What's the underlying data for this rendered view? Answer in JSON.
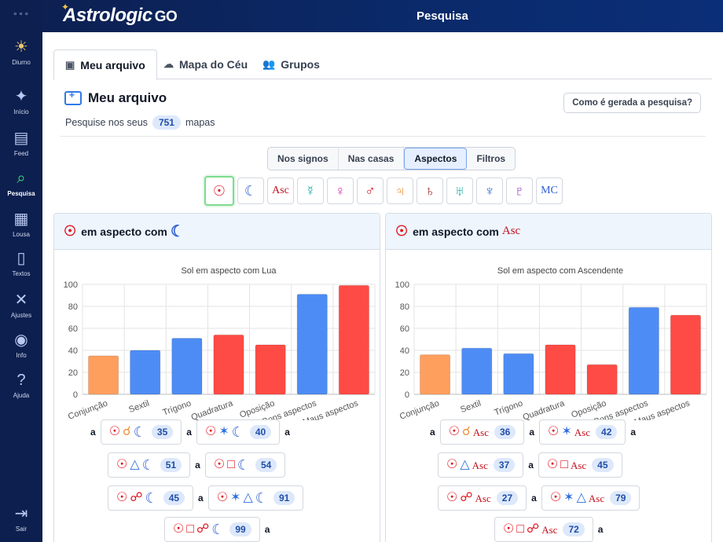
{
  "app": {
    "logo": "Astrologic",
    "logo_suffix": "GO",
    "page_title": "Pesquisa"
  },
  "sidebar": {
    "menu_dots": "∘∘∘",
    "items": [
      {
        "label": "Diurno",
        "icon": "sun-icon",
        "glyph": "☀"
      },
      {
        "label": "Início",
        "icon": "sparkle-icon",
        "glyph": "✦"
      },
      {
        "label": "Feed",
        "icon": "feed-icon",
        "glyph": "▤"
      },
      {
        "label": "Pesquisa",
        "icon": "search-icon",
        "glyph": "⌕",
        "active": true
      },
      {
        "label": "Lousa",
        "icon": "board-icon",
        "glyph": "▦"
      },
      {
        "label": "Textos",
        "icon": "document-icon",
        "glyph": "▯"
      },
      {
        "label": "Ajustes",
        "icon": "tools-icon",
        "glyph": "✕"
      },
      {
        "label": "Info",
        "icon": "info-icon",
        "glyph": "◉"
      },
      {
        "label": "Ajuda",
        "icon": "help-icon",
        "glyph": "?"
      },
      {
        "label": "Sair",
        "icon": "logout-icon",
        "glyph": "⇥"
      }
    ]
  },
  "tabs": [
    {
      "label": "Meu arquivo",
      "icon": "folder-icon",
      "glyph": "▣",
      "active": true
    },
    {
      "label": "Mapa do Céu",
      "icon": "cloud-icon",
      "glyph": "☁"
    },
    {
      "label": "Grupos",
      "icon": "group-icon",
      "glyph": "👥"
    }
  ],
  "section": {
    "title": "Meu arquivo",
    "how_button": "Como é gerada a pesquisa?",
    "search_prefix": "Pesquise nos seus",
    "map_count": "751",
    "search_suffix": "mapas"
  },
  "segments": [
    {
      "label": "Nos signos"
    },
    {
      "label": "Nas casas"
    },
    {
      "label": "Aspectos",
      "active": true
    },
    {
      "label": "Filtros"
    }
  ],
  "planets": [
    {
      "glyph": "☉",
      "icon": "sun-icon",
      "color": "#e0121f",
      "active": true
    },
    {
      "glyph": "☾",
      "icon": "moon-icon",
      "color": "#2f5fd6"
    },
    {
      "glyph": "Asc",
      "icon": "ascendant-icon",
      "color": "#c1121f",
      "kind": "asc"
    },
    {
      "glyph": "☿",
      "icon": "mercury-icon",
      "color": "#1aa6a6"
    },
    {
      "glyph": "♀",
      "icon": "venus-icon",
      "color": "#d630b0"
    },
    {
      "glyph": "♂",
      "icon": "mars-icon",
      "color": "#d0141f"
    },
    {
      "glyph": "♃",
      "icon": "jupiter-icon",
      "color": "#f0933c"
    },
    {
      "glyph": "♄",
      "icon": "saturn-icon",
      "color": "#9b1b1b"
    },
    {
      "glyph": "♅",
      "icon": "uranus-icon",
      "color": "#1aa6a6"
    },
    {
      "glyph": "♆",
      "icon": "neptune-icon",
      "color": "#2f6fe0"
    },
    {
      "glyph": "♇",
      "icon": "pluto-icon",
      "color": "#8e2cbf"
    },
    {
      "glyph": "MC",
      "icon": "midheaven-icon",
      "color": "#2f5fd6",
      "kind": "mc"
    }
  ],
  "card_connector": "em aspecto com",
  "chip_a": "a",
  "chart_data": [
    {
      "type": "bar",
      "title": "Sol em aspecto com Lua",
      "categories": [
        "Conjunção",
        "Sextil",
        "Trígono",
        "Quadratura",
        "Oposição",
        "Bons aspectos",
        "Maus aspectos"
      ],
      "values": [
        35,
        40,
        51,
        54,
        45,
        91,
        99
      ],
      "colors": [
        "#ff9f5e",
        "#4e8cf5",
        "#4e8cf5",
        "#ff4b45",
        "#ff4b45",
        "#4e8cf5",
        "#ff4b45"
      ],
      "ylim": [
        0,
        100
      ],
      "yticks": [
        0,
        20,
        40,
        60,
        80,
        100
      ],
      "grid": true
    },
    {
      "type": "bar",
      "title": "Sol em aspecto com Ascendente",
      "categories": [
        "Conjunção",
        "Sextil",
        "Trígono",
        "Quadratura",
        "Oposição",
        "Bons aspectos",
        "Maus aspectos"
      ],
      "values": [
        36,
        42,
        37,
        45,
        27,
        79,
        72
      ],
      "colors": [
        "#ff9f5e",
        "#4e8cf5",
        "#4e8cf5",
        "#ff4b45",
        "#ff4b45",
        "#4e8cf5",
        "#ff4b45"
      ],
      "ylim": [
        0,
        100
      ],
      "yticks": [
        0,
        20,
        40,
        60,
        80,
        100
      ],
      "grid": true
    }
  ],
  "cards": [
    {
      "target": "moon",
      "chips": [
        {
          "glyphs": [
            "sun",
            "conj",
            "moon"
          ],
          "value": "35"
        },
        {
          "glyphs": [
            "sun",
            "sext",
            "moon"
          ],
          "value": "40"
        },
        {
          "glyphs": [
            "sun",
            "tri",
            "moon"
          ],
          "value": "51"
        },
        {
          "glyphs": [
            "sun",
            "quad",
            "moon"
          ],
          "value": "54"
        },
        {
          "glyphs": [
            "sun",
            "opp",
            "moon"
          ],
          "value": "45"
        },
        {
          "glyphs": [
            "sun",
            "sext",
            "tri",
            "moon"
          ],
          "value": "91"
        },
        {
          "glyphs": [
            "sun",
            "quad",
            "opp",
            "moon"
          ],
          "value": "99"
        }
      ]
    },
    {
      "target": "asc",
      "chips": [
        {
          "glyphs": [
            "sun",
            "conj",
            "asc"
          ],
          "value": "36"
        },
        {
          "glyphs": [
            "sun",
            "sext",
            "asc"
          ],
          "value": "42"
        },
        {
          "glyphs": [
            "sun",
            "tri",
            "asc"
          ],
          "value": "37"
        },
        {
          "glyphs": [
            "sun",
            "quad",
            "asc"
          ],
          "value": "45"
        },
        {
          "glyphs": [
            "sun",
            "opp",
            "asc"
          ],
          "value": "27"
        },
        {
          "glyphs": [
            "sun",
            "sext",
            "tri",
            "asc"
          ],
          "value": "79"
        },
        {
          "glyphs": [
            "sun",
            "quad",
            "opp",
            "asc"
          ],
          "value": "72"
        }
      ]
    }
  ],
  "glyph_map": {
    "sun": "☉",
    "moon": "☾",
    "asc": "Asc",
    "conj": "☌",
    "sext": "✶",
    "tri": "△",
    "quad": "□",
    "opp": "☍"
  }
}
